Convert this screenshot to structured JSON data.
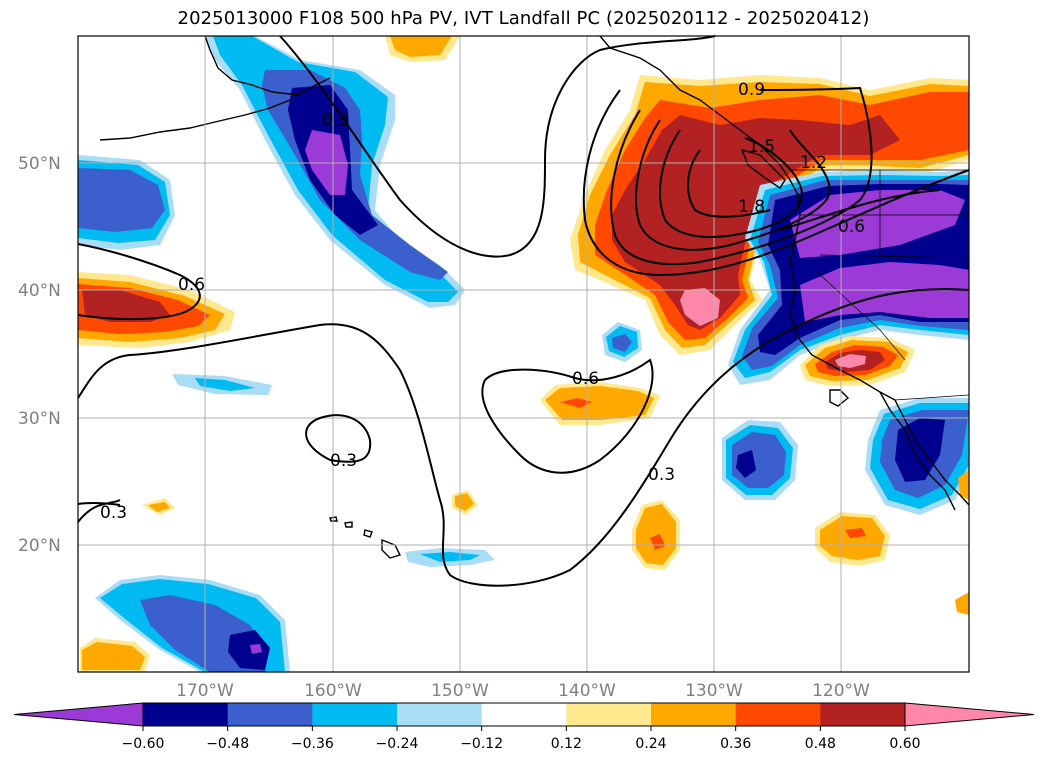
{
  "title": "2025013000 F108 500 hPa PV, IVT Landfall PC (2025020112 - 2025020412)",
  "colors": {
    "purple": "#9b3ad6",
    "navy": "#00008f",
    "blue": "#3b5fcc",
    "cyan": "#00baf2",
    "lightblue": "#a9ddf7",
    "white": "#ffffff",
    "yellow": "#ffe88d",
    "orange": "#ffa800",
    "redorange": "#ff4800",
    "darkred": "#b22222",
    "pink": "#ff88aa"
  },
  "chart_data": {
    "type": "map",
    "longitude_labels": [
      "170°W",
      "160°W",
      "150°W",
      "140°W",
      "130°W",
      "120°W"
    ],
    "latitude_labels": [
      "50°N",
      "40°N",
      "30°N",
      "20°N"
    ],
    "grid": true,
    "colorbar": {
      "boundaries": [
        "−0.60",
        "−0.48",
        "−0.36",
        "−0.24",
        "−0.12",
        "0.12",
        "0.24",
        "0.36",
        "0.48",
        "0.60"
      ],
      "extend": "both",
      "bins": [
        "purple",
        "navy",
        "blue",
        "cyan",
        "lightblue",
        "white",
        "yellow",
        "orange",
        "redorange",
        "darkred",
        "pink"
      ]
    },
    "contour_labels": [
      "0.9",
      "1.5",
      "1.2",
      "1.8",
      "0.6",
      "0.3",
      "0.6",
      "0.6",
      "0.3",
      "0.3",
      "0.3"
    ]
  }
}
